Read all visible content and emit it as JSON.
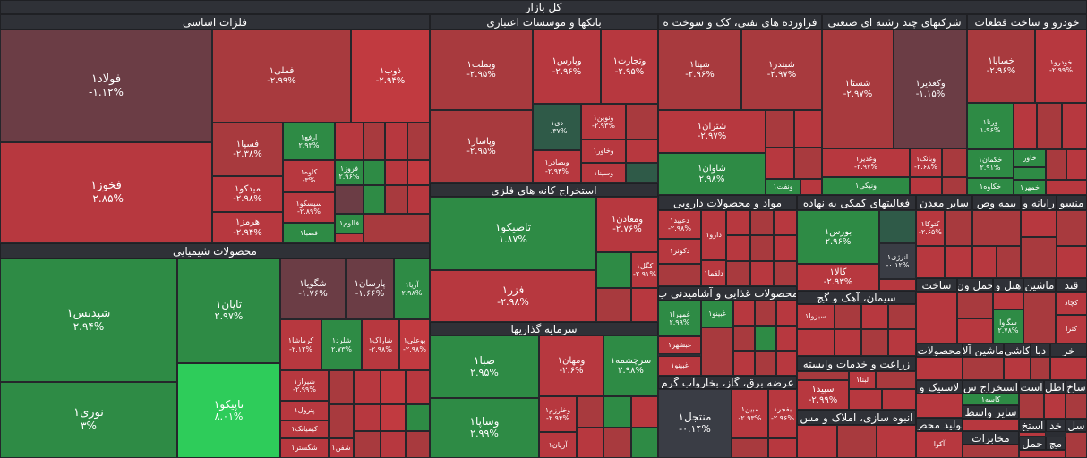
{
  "title": "کل بازار",
  "colors": {
    "down": "#b7383f",
    "down_dark": "#6b3d45",
    "up": "#2e8b45",
    "up_bright": "#2ecc5a",
    "neutral": "#3a3d45"
  },
  "sectors": {
    "base_metals": "فلزات اساسی",
    "banks": "بانکها و موسسات اعتباری",
    "petroleum": "فراورده های نفتی، کک و سوخت ه",
    "multi": "شرکتهای چند رشته ای صنعتی",
    "auto": "خودرو و ساخت قطعات",
    "chemicals": "محصولات شیمیایی",
    "mining": "استخراج کانه های فلزی",
    "pharma": "مواد و محصولات دارویی",
    "aux": "فعالیتهای کمکی به نهاده",
    "other_mining": "سایر معدن",
    "insurance": "بیمه وص",
    "computers": "رایانه و",
    "textiles": "منسو",
    "investment": "سرمایه گذاریها",
    "food": "محصولات غذایی و آشامیدنی ب",
    "cement": "سیمان، آهک و گچ",
    "agri": "زراعت و خدمات وابسته",
    "utilities": "عرضه برق، گاز، بخاروآب گرم",
    "construction": "انبوه سازی، املاک و مس",
    "qand": "قند",
    "hotel": "هتل و",
    "transport": "حمل ون",
    "machinery": "ماشین",
    "kashi": "کاشی",
    "machinery2": "ماشین آلا",
    "mahsulat": "محصولات",
    "khar": "خر",
    "daba": "دبا",
    "sakht": "ساخت",
    "atl": "اطل",
    "ast": "است",
    "lastic": "لاستیک و",
    "estekhraj_s": "استخراج س",
    "sakh": "ساخ",
    "sayer_vasat": "سایر واسط",
    "estegh": "استخ",
    "tolid": "تولید محص",
    "khad": "خد",
    "sal": "سل",
    "mokhaberat": "مخابرات",
    "haml": "حمل",
    "mach": "مچ"
  },
  "stocks": {
    "foolad": {
      "name": "فولاد۱",
      "change": "-۱.۱۲%"
    },
    "fameli": {
      "name": "فملی۱",
      "change": "-۲.۹۹%"
    },
    "zob": {
      "name": "ذوب۱",
      "change": "-۲.۹۴%"
    },
    "fkhooz": {
      "name": "فخوز۱",
      "change": "-۲.۸۵%"
    },
    "fsepa": {
      "name": "فسپا۱",
      "change": "-۲.۳۸%"
    },
    "arfa": {
      "name": "ارفع۱",
      "change": "۲.۹۳%"
    },
    "midko": {
      "name": "میدکو۱",
      "change": "-۲.۹۸%"
    },
    "kave": {
      "name": "کاوه۱",
      "change": "-۳%"
    },
    "foroz": {
      "name": "فروز۱",
      "change": "۲.۹۶%"
    },
    "sisko": {
      "name": "سیسکو۱",
      "change": "-۲.۸۹%"
    },
    "hormoz": {
      "name": "هرمز۱",
      "change": "-۲.۹۴%"
    },
    "fesaba": {
      "name": "فصبا۱",
      "change": ""
    },
    "falum": {
      "name": "فالوم۱",
      "change": ""
    },
    "vbmellat": {
      "name": "وبملت۱",
      "change": "-۲.۹۵%"
    },
    "vpars": {
      "name": "وپارس۱",
      "change": "-۲.۹۶%"
    },
    "vtejarat": {
      "name": "وتجارت۱",
      "change": "-۲.۹۵%"
    },
    "vpasar": {
      "name": "وپاسار۱",
      "change": "-۲.۹۵%"
    },
    "dey": {
      "name": "دی۱",
      "change": "۰.۳۷%"
    },
    "vnovin": {
      "name": "ونوین۱",
      "change": "-۲.۹۳%"
    },
    "vkhavar": {
      "name": "وخاور۱",
      "change": ""
    },
    "vbsader": {
      "name": "وبصادر۱",
      "change": "-۲.۹۴%"
    },
    "vsina": {
      "name": "وسینا۱",
      "change": ""
    },
    "shpna": {
      "name": "شپنا۱",
      "change": "-۲.۹۶%"
    },
    "shbandar": {
      "name": "شبندر۱",
      "change": "-۲.۹۷%"
    },
    "shtran": {
      "name": "شتران۱",
      "change": "-۲.۹۷%"
    },
    "shavan": {
      "name": "شاوان۱",
      "change": "۲.۹۸%"
    },
    "vnaft": {
      "name": "ونفت۱",
      "change": ""
    },
    "shasta": {
      "name": "شستا۱",
      "change": "-۲.۹۷%"
    },
    "vkadir": {
      "name": "وکغدیر۱",
      "change": "-۱.۱۵%"
    },
    "vghadir": {
      "name": "وغدیر۱",
      "change": "-۲.۹۷%"
    },
    "vbank": {
      "name": "وبانک۱",
      "change": "-۲.۶۸%"
    },
    "vniki": {
      "name": "ونیکی۱",
      "change": ""
    },
    "khsapa": {
      "name": "خساپا۱",
      "change": "-۲.۹۶%"
    },
    "khodro": {
      "name": "خودرو۱",
      "change": "-۲.۹۹%"
    },
    "vrana": {
      "name": "ورنا۱",
      "change": "۱.۹۶%"
    },
    "khkaman": {
      "name": "خکمان۱",
      "change": "۲.۹۱%"
    },
    "khkaveh": {
      "name": "خکاوه۱",
      "change": ""
    },
    "khavar": {
      "name": "خاور",
      "change": ""
    },
    "khmehr": {
      "name": "خمهر۱",
      "change": ""
    },
    "shedis": {
      "name": "شپدیس۱",
      "change": "۲.۹۴%"
    },
    "tapan": {
      "name": "تاپان۱",
      "change": "۲.۹۷%"
    },
    "shgavia": {
      "name": "شگویا۱",
      "change": "-۱.۷۶%"
    },
    "parsan": {
      "name": "پارسان۱",
      "change": "-۱.۶۶%"
    },
    "aria": {
      "name": "آریا۱",
      "change": "۲.۹۸%"
    },
    "kermasha": {
      "name": "کرماشا۱",
      "change": "-۲.۱۲%"
    },
    "shlard": {
      "name": "شلرد۱",
      "change": "۲.۷۳%"
    },
    "sharak": {
      "name": "شاراک۱",
      "change": "-۲.۹۸%"
    },
    "boali": {
      "name": "بوعلی۱",
      "change": "-۲.۹۸%"
    },
    "nouri": {
      "name": "نوری۱",
      "change": "۳%"
    },
    "tapiko": {
      "name": "تاپیکو۱",
      "change": "۸.۰۱%"
    },
    "shiraz": {
      "name": "شیراز۱",
      "change": "-۲.۹۹%"
    },
    "petrol": {
      "name": "پترول۱",
      "change": ""
    },
    "kimiatek": {
      "name": "کیمیاتک۱",
      "change": ""
    },
    "shgostar": {
      "name": "شگستر۱",
      "change": ""
    },
    "shfan": {
      "name": "شفن۱",
      "change": ""
    },
    "tasiko": {
      "name": "تاصیکو۱",
      "change": "۱.۸۷%"
    },
    "vmaaden": {
      "name": "ومعادن۱",
      "change": "-۲.۷۶%"
    },
    "fzar": {
      "name": "فزر۱",
      "change": "-۲.۹۸%"
    },
    "kgol": {
      "name": "کگل۱",
      "change": "-۲.۹۱%"
    },
    "dabid": {
      "name": "دعبید۱",
      "change": "-۲.۹۸%"
    },
    "dara": {
      "name": "دارو۱",
      "change": ""
    },
    "dkosar": {
      "name": "دکوثر۱",
      "change": ""
    },
    "dalsa": {
      "name": "دلقما۱",
      "change": ""
    },
    "boors": {
      "name": "بورس۱",
      "change": "۲.۹۶%"
    },
    "energy": {
      "name": "انرژی۱",
      "change": "-۰.۱۲%"
    },
    "kala": {
      "name": "کالا۱",
      "change": "-۲.۹۳%"
    },
    "ktkaa": {
      "name": "کتوکا۱",
      "change": "-۲.۶۵%"
    },
    "saba": {
      "name": "صبا۱",
      "change": "۲.۹۵%"
    },
    "vomhan": {
      "name": "ومهان۱",
      "change": "-۲.۶%"
    },
    "sarcheshme": {
      "name": "سرچشمه۱",
      "change": "۲.۹۸%"
    },
    "vsapa": {
      "name": "وساپا۱",
      "change": "۲.۹۹%"
    },
    "vkharazm": {
      "name": "وخارزم۱",
      "change": "-۲.۹۴%"
    },
    "arian": {
      "name": "آریان۱",
      "change": ""
    },
    "ghamra": {
      "name": "غمهرا۱",
      "change": "۲.۹۹%"
    },
    "ghbino": {
      "name": "غبینو۱",
      "change": ""
    },
    "ghshahr": {
      "name": "غبشهر۱",
      "change": ""
    },
    "ghbino2": {
      "name": "غبینو۱",
      "change": ""
    },
    "sbzva": {
      "name": "سبزوا۱",
      "change": ""
    },
    "sepid": {
      "name": "سپید۱",
      "change": "-۲.۹۹%"
    },
    "lena": {
      "name": "لبنا۱",
      "change": ""
    },
    "montajel": {
      "name": "منتجل۱",
      "change": "-۰.۱۴%"
    },
    "mbin": {
      "name": "مبین۱",
      "change": "-۲.۹۳%"
    },
    "bfjar": {
      "name": "بفجر۱",
      "change": "-۲.۹۶%"
    },
    "seghava": {
      "name": "سگاوا",
      "change": "۲.۷۸%"
    },
    "kasa": {
      "name": "کاسه۱",
      "change": ""
    },
    "akova": {
      "name": "آکوا",
      "change": ""
    },
    "kjara": {
      "name": "کچاد",
      "change": ""
    },
    "ktapa": {
      "name": "کترا",
      "change": ""
    }
  }
}
